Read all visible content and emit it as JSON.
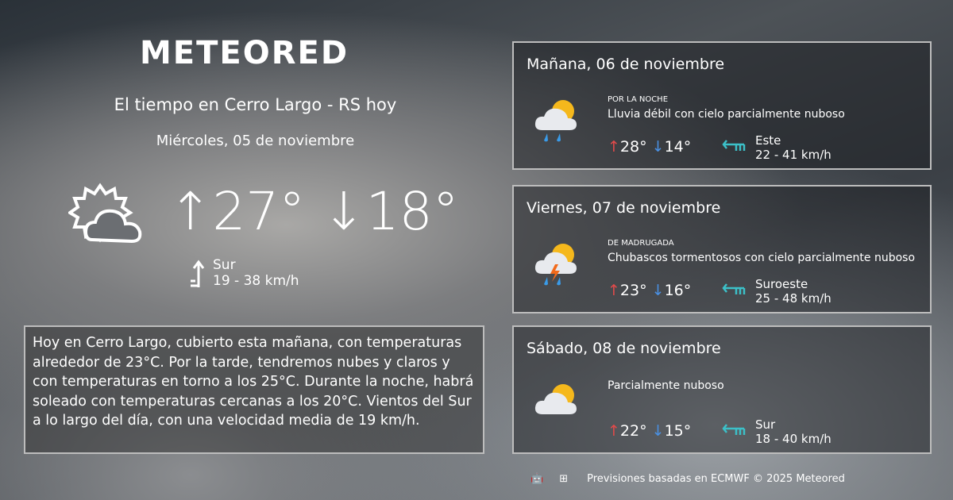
{
  "brand": "METEORED",
  "header": {
    "title": "El tiempo en Cerro Largo - RS hoy",
    "date": "Miércoles, 05 de noviembre"
  },
  "today": {
    "icon": "partly-cloudy-outline-icon",
    "max": "27°",
    "min": "18°",
    "wind_dir": "Sur",
    "wind_speed": "19 - 38 km/h"
  },
  "summary": "Hoy en Cerro Largo, cubierto esta mañana, con temperaturas alrededor de 23°C. Por la tarde, tendremos nubes y claros y con temperaturas en torno a los 25°C. Durante la noche, habrá soleado  con temperaturas cercanas a los 20°C. Vientos del Sur a lo largo del día, con una velocidad media de 19 km/h.",
  "forecast": [
    {
      "title": "Mañana, 06 de noviembre",
      "period": "POR LA NOCHE",
      "desc": "Lluvia débil con cielo parcialmente nuboso",
      "icon": "rain-partly-cloudy-icon",
      "max": "28°",
      "min": "14°",
      "wind_dir": "Este",
      "wind_speed": "22 - 41 km/h"
    },
    {
      "title": "Viernes, 07 de noviembre",
      "period": "DE MADRUGADA",
      "desc": "Chubascos tormentosos con cielo parcialmente nuboso",
      "icon": "thunderstorm-partly-cloudy-icon",
      "max": "23°",
      "min": "16°",
      "wind_dir": "Suroeste",
      "wind_speed": "25 - 48 km/h"
    },
    {
      "title": "Sábado, 08 de noviembre",
      "period": "",
      "desc": "Parcialmente nuboso",
      "icon": "partly-cloudy-icon",
      "max": "22°",
      "min": "15°",
      "wind_dir": "Sur",
      "wind_speed": "18 - 40 km/h"
    }
  ],
  "footer": {
    "text": "Previsiones basadas en ECMWF © 2025 Meteored",
    "icons": [
      "android-icon",
      "apple-icon",
      "windows-icon"
    ]
  },
  "colors": {
    "up": "#e34a4a",
    "down": "#4a90e2",
    "wind": "#3cc0c8"
  }
}
